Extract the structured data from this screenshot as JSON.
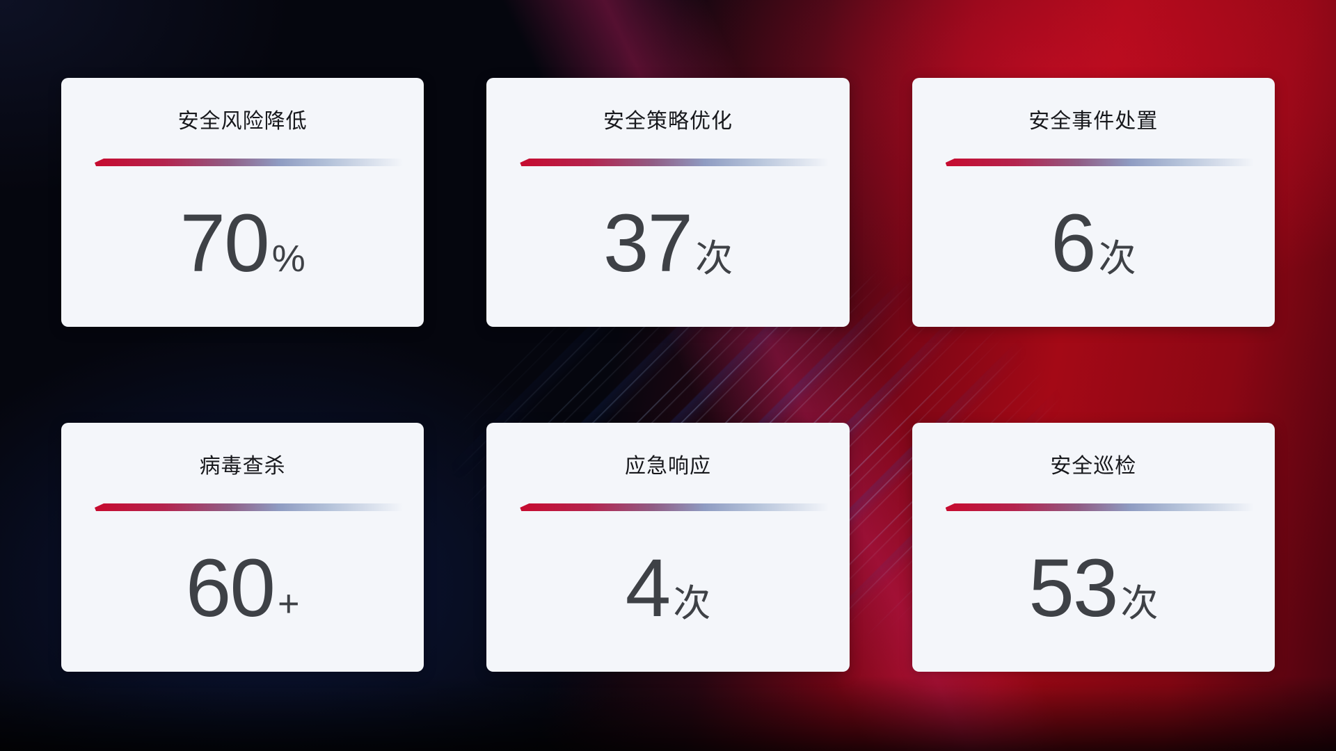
{
  "dashboard": {
    "cards": [
      {
        "title": "安全风险降低",
        "value": "70",
        "unit": "%"
      },
      {
        "title": "安全策略优化",
        "value": "37",
        "unit": "次"
      },
      {
        "title": "安全事件处置",
        "value": "6",
        "unit": "次"
      },
      {
        "title": "病毒查杀",
        "value": "60",
        "unit": "+"
      },
      {
        "title": "应急响应",
        "value": "4",
        "unit": "次"
      },
      {
        "title": "安全巡检",
        "value": "53",
        "unit": "次"
      }
    ],
    "colors": {
      "card_background": "#f4f6fa",
      "title_text": "#17181c",
      "value_text": "#3e4146",
      "divider_red": "#c60b2f",
      "divider_steel_blue": "#b5c3da",
      "background_dark_navy": "#05060e",
      "background_red": "#a40916"
    }
  }
}
